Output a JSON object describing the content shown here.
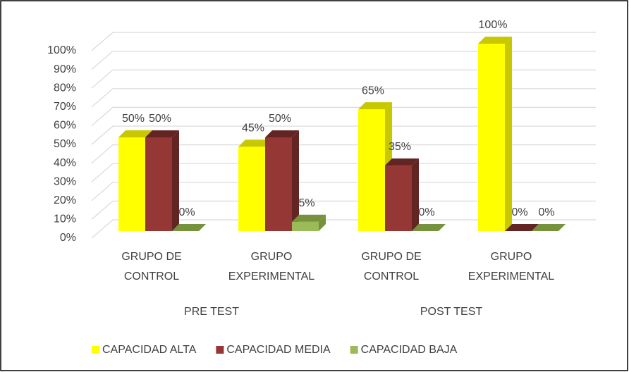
{
  "chart_data": {
    "type": "bar3d",
    "categories": [
      "GRUPO DE CONTROL",
      "GRUPO EXPERIMENTAL",
      "GRUPO DE CONTROL",
      "GRUPO EXPERIMENTAL"
    ],
    "groups": [
      "PRE TEST",
      "POST TEST"
    ],
    "series": [
      {
        "name": "CAPACIDAD ALTA",
        "color": "#ffff00",
        "side_color": "#c8c800",
        "values": [
          50,
          45,
          65,
          100
        ],
        "value_labels": [
          "50%",
          "45%",
          "65%",
          "100%"
        ]
      },
      {
        "name": "CAPACIDAD MEDIA",
        "color": "#953735",
        "side_color": "#632523",
        "values": [
          50,
          50,
          35,
          0
        ],
        "value_labels": [
          "50%",
          "50%",
          "35%",
          "0%"
        ]
      },
      {
        "name": "CAPACIDAD BAJA",
        "color": "#9bbb59",
        "side_color": "#76923c",
        "values": [
          0,
          5,
          0,
          0
        ],
        "value_labels": [
          "0%",
          "5%",
          "0%",
          "0%"
        ]
      }
    ],
    "ylim": [
      0,
      100
    ],
    "yticks": [
      {
        "value": 0,
        "label": "0%"
      },
      {
        "value": 10,
        "label": "10%"
      },
      {
        "value": 20,
        "label": "20%"
      },
      {
        "value": 30,
        "label": "30%"
      },
      {
        "value": 40,
        "label": "40%"
      },
      {
        "value": 50,
        "label": "50%"
      },
      {
        "value": 60,
        "label": "60%"
      },
      {
        "value": 70,
        "label": "70%"
      },
      {
        "value": 80,
        "label": "80%"
      },
      {
        "value": 90,
        "label": "90%"
      },
      {
        "value": 100,
        "label": "100%"
      }
    ],
    "grid": true,
    "legend": "bottom"
  }
}
